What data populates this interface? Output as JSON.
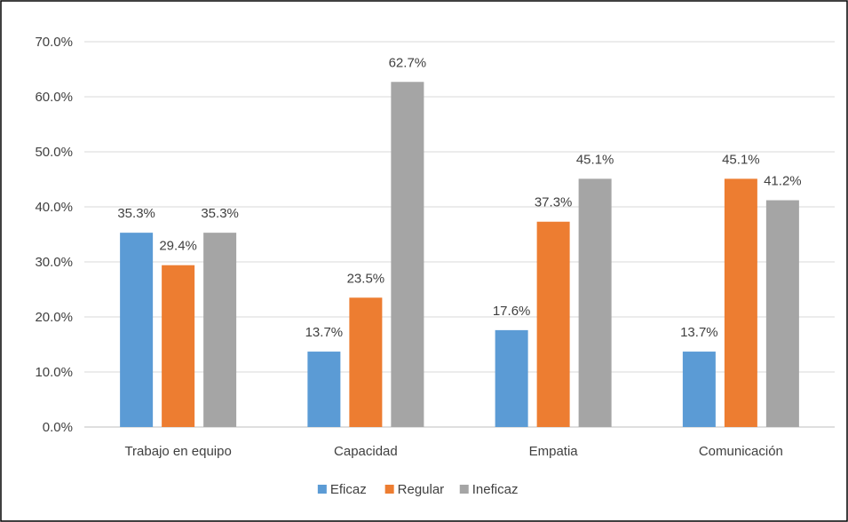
{
  "chart_data": {
    "type": "bar",
    "categories": [
      "Trabajo en equipo",
      "Capacidad",
      "Empatia",
      "Comunicación"
    ],
    "series": [
      {
        "name": "Eficaz",
        "values": [
          35.3,
          13.7,
          17.6,
          13.7
        ],
        "labels": [
          "35.3%",
          "13.7%",
          "17.6%",
          "13.7%"
        ]
      },
      {
        "name": "Regular",
        "values": [
          29.4,
          23.5,
          37.3,
          45.1
        ],
        "labels": [
          "29.4%",
          "23.5%",
          "37.3%",
          "45.1%"
        ]
      },
      {
        "name": "Ineficaz",
        "values": [
          35.3,
          62.7,
          45.1,
          41.2
        ],
        "labels": [
          "35.3%",
          "62.7%",
          "45.1%",
          "41.2%"
        ]
      }
    ],
    "y_ticks": [
      "0.0%",
      "10.0%",
      "20.0%",
      "30.0%",
      "40.0%",
      "50.0%",
      "60.0%",
      "70.0%"
    ],
    "ylim": [
      0,
      70
    ],
    "grid": true,
    "legend_position": "bottom",
    "colors": [
      "#5b9bd5",
      "#ed7d31",
      "#a5a5a5"
    ],
    "border_color": "#000000",
    "gridline_color": "#d9d9d9"
  }
}
